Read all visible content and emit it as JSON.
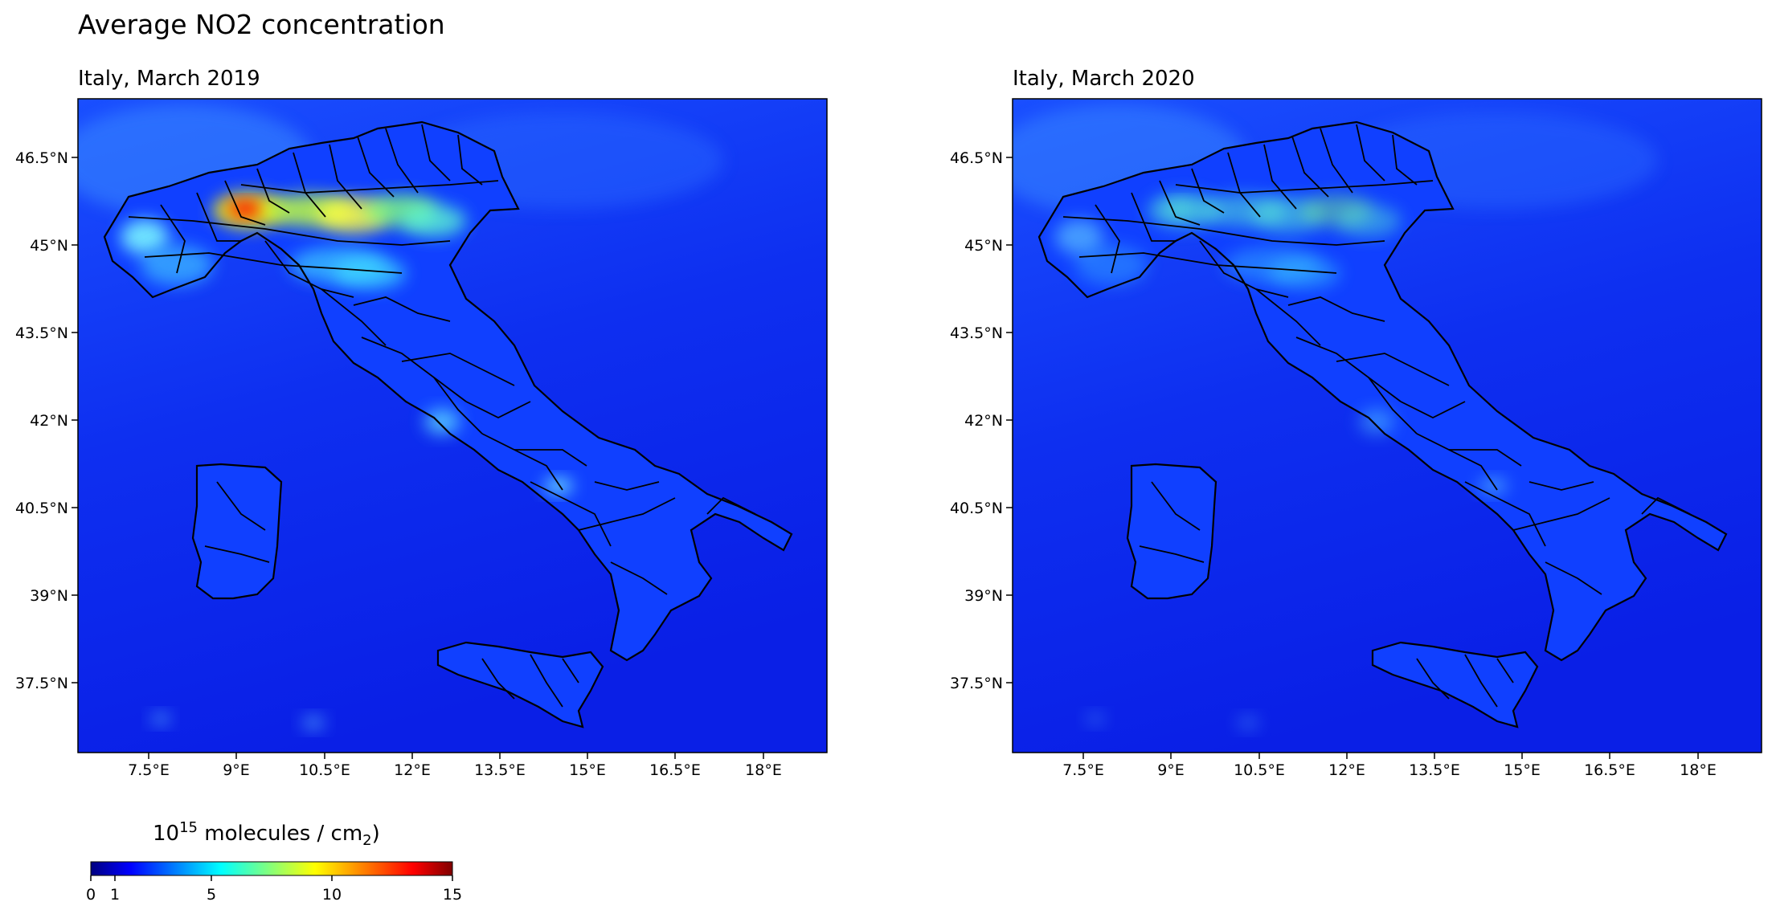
{
  "figure": {
    "title": "Average NO2 concentration",
    "panels": [
      {
        "title": "Italy, March 2019",
        "intensity": 1.0
      },
      {
        "title": "Italy, March 2020",
        "intensity": 0.55
      }
    ],
    "x_ticks": [
      "7.5°E",
      "9°E",
      "10.5°E",
      "12°E",
      "13.5°E",
      "15°E",
      "16.5°E",
      "18°E"
    ],
    "y_ticks": [
      "46.5°N",
      "45°N",
      "43.5°N",
      "42°N",
      "40.5°N",
      "39°N",
      "37.5°N"
    ],
    "colorbar": {
      "label_base": "10",
      "label_exp": "15",
      "label_mid": " molecules / cm",
      "label_sub": "2",
      "label_end": ")",
      "min": 0,
      "max": 15,
      "ticks": [
        "0",
        "1",
        "5",
        "10",
        "15"
      ],
      "colormap": "jet",
      "colors": [
        "#000080",
        "#0000ff",
        "#00ffff",
        "#ffff00",
        "#ff0000",
        "#800000"
      ]
    }
  }
}
